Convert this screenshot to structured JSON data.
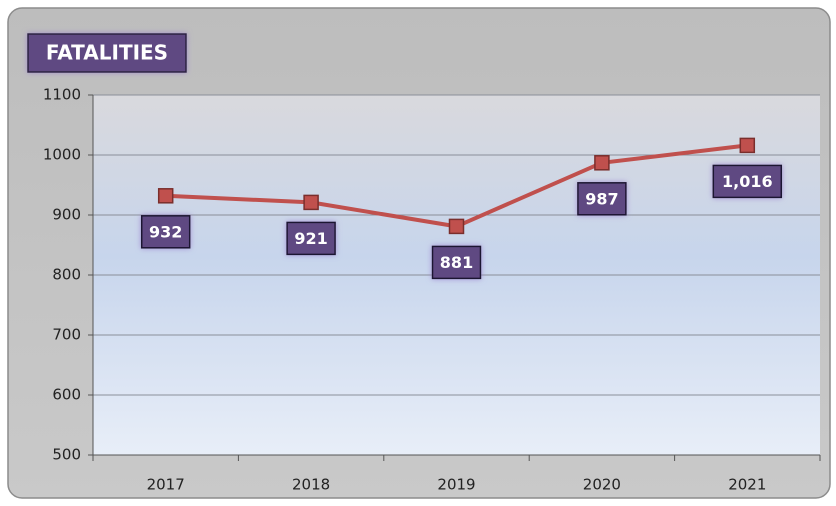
{
  "chart_data": {
    "type": "line",
    "title": "FATALITIES",
    "categories": [
      "2017",
      "2018",
      "2019",
      "2020",
      "2021"
    ],
    "values": [
      932,
      921,
      881,
      987,
      1016
    ],
    "value_labels": [
      "932",
      "921",
      "881",
      "987",
      "1,016"
    ],
    "color": "#c0504d",
    "ylim": [
      500,
      1100
    ],
    "yticks": [
      500,
      600,
      700,
      800,
      900,
      1000,
      1100
    ],
    "grid": true
  }
}
